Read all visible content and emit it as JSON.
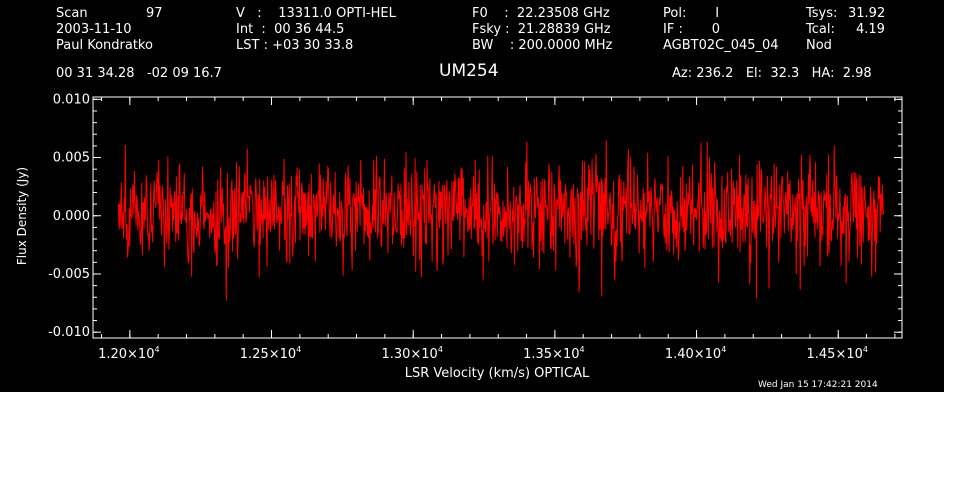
{
  "header": {
    "col1": {
      "scan_label": "Scan",
      "scan_value": "97",
      "date": "2003-11-10",
      "observer": "Paul Kondratko"
    },
    "col2": {
      "v": "V   :    13311.0 OPTI-HEL",
      "int": "Int  :  00 36 44.5",
      "lst": "LST : +03 30 33.8"
    },
    "col3": {
      "f0": "F0    :  22.23508 GHz",
      "fsky": "Fsky :  21.28839 GHz",
      "bw": "BW    : 200.0000 MHz"
    },
    "col4": {
      "pol": "Pol:       I",
      "if": "IF :       0",
      "project": "AGBT02C_045_04"
    },
    "col5": {
      "tsys_label": "Tsys:",
      "tsys_value": "31.92",
      "tcal_label": "Tcal:",
      "tcal_value": "4.19",
      "mode": "Nod"
    },
    "coords": "00 31 34.28   -02 09 16.7",
    "source": "UM254",
    "pointing": "Az: 236.2   El:  32.3   HA:  2.98"
  },
  "timestamp": "Wed Jan 15 17:42:21 2014",
  "colors": {
    "background": "#000000",
    "axes": "#ffffff",
    "trace": "#ff0000"
  },
  "chart_data": {
    "type": "line",
    "title": "UM254",
    "xlabel": "LSR Velocity (km/s) OPTICAL",
    "ylabel": "Flux Density (Jy)",
    "xlim": [
      11870,
      14725
    ],
    "ylim": [
      -0.0105,
      0.0102
    ],
    "x_ticks": [
      {
        "value": 12000,
        "mantissa": "1.20",
        "exp": "4"
      },
      {
        "value": 12500,
        "mantissa": "1.25",
        "exp": "4"
      },
      {
        "value": 13000,
        "mantissa": "1.30",
        "exp": "4"
      },
      {
        "value": 13500,
        "mantissa": "1.35",
        "exp": "4"
      },
      {
        "value": 14000,
        "mantissa": "1.40",
        "exp": "4"
      },
      {
        "value": 14500,
        "mantissa": "1.45",
        "exp": "4"
      }
    ],
    "y_ticks": [
      {
        "value": 0.01,
        "label": "0.010"
      },
      {
        "value": 0.005,
        "label": "0.005"
      },
      {
        "value": 0.0,
        "label": "0.000"
      },
      {
        "value": -0.005,
        "label": "-0.005"
      },
      {
        "value": -0.01,
        "label": "-0.010"
      }
    ],
    "series": [
      {
        "x_range": [
          11960,
          14660
        ],
        "mean": 0.0003,
        "rms": 0.0022,
        "min": -0.0073,
        "max": 0.0083,
        "npoints": 1350
      }
    ],
    "grid": false,
    "legend": "none"
  }
}
